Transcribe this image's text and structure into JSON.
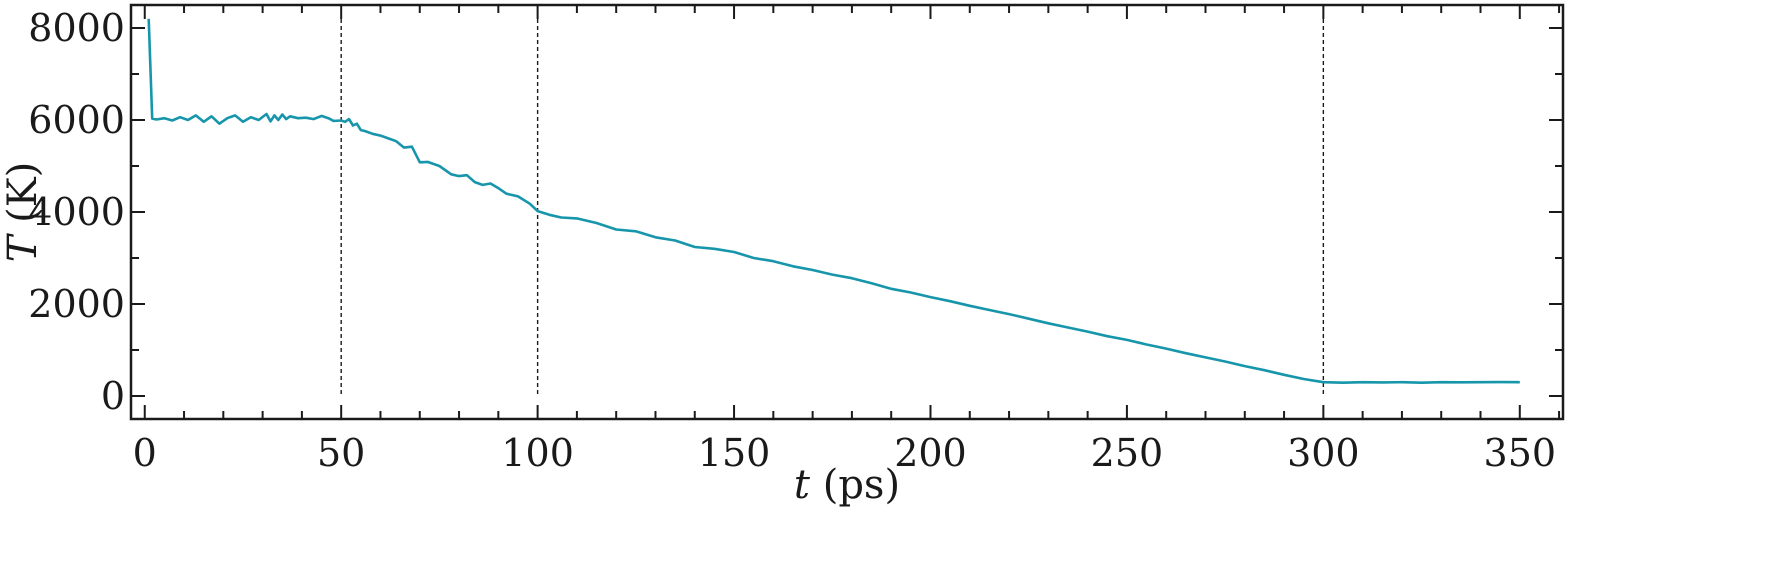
{
  "chart_data": {
    "type": "line",
    "xlabel": {
      "symbol": "t",
      "unit": "(ps)"
    },
    "ylabel": {
      "symbol": "T",
      "unit": "(K)"
    },
    "xlim": [
      -3.5,
      361
    ],
    "ylim": [
      -500,
      8500
    ],
    "xticks": [
      0,
      50,
      100,
      150,
      200,
      250,
      300,
      350
    ],
    "yticks": [
      0,
      2000,
      4000,
      6000,
      8000
    ],
    "x_minor_step": 10,
    "y_minor_step": 1000,
    "vlines": [
      50,
      100,
      300
    ],
    "grid": false,
    "line_color": "#1796ab",
    "series": [
      {
        "x": [
          1,
          1.9,
          3,
          5,
          7,
          9,
          11,
          13,
          15,
          17,
          19,
          21,
          23,
          25,
          27,
          29,
          31,
          32,
          33,
          34,
          35,
          36,
          37,
          39,
          41,
          43,
          45,
          47,
          48,
          50,
          51,
          52,
          53,
          54,
          55,
          56,
          58,
          60,
          62,
          64,
          66,
          68,
          70,
          72,
          75,
          78,
          80,
          82,
          84,
          86,
          88,
          90,
          92,
          95,
          98,
          100,
          103,
          106,
          110,
          115,
          120,
          125,
          130,
          135,
          140,
          145,
          150,
          155,
          160,
          165,
          170,
          175,
          180,
          185,
          190,
          195,
          200,
          205,
          210,
          215,
          220,
          225,
          230,
          235,
          240,
          245,
          250,
          255,
          260,
          265,
          270,
          275,
          280,
          285,
          290,
          295,
          300,
          305,
          310,
          315,
          320,
          325,
          330,
          335,
          340,
          345,
          350
        ],
        "y": [
          8200,
          6030,
          6010,
          6040,
          5990,
          6060,
          6000,
          6100,
          5960,
          6080,
          5920,
          6040,
          6100,
          5960,
          6060,
          6000,
          6130,
          5970,
          6100,
          6000,
          6120,
          6020,
          6080,
          6040,
          6050,
          6020,
          6090,
          6030,
          5980,
          5990,
          5960,
          6020,
          5880,
          5920,
          5780,
          5760,
          5700,
          5660,
          5600,
          5540,
          5400,
          5420,
          5080,
          5090,
          5000,
          4820,
          4780,
          4800,
          4650,
          4590,
          4620,
          4520,
          4400,
          4340,
          4180,
          4020,
          3940,
          3880,
          3860,
          3760,
          3620,
          3580,
          3450,
          3380,
          3240,
          3200,
          3130,
          3000,
          2930,
          2820,
          2740,
          2640,
          2560,
          2450,
          2330,
          2250,
          2150,
          2060,
          1960,
          1870,
          1780,
          1680,
          1580,
          1490,
          1400,
          1300,
          1220,
          1120,
          1030,
          930,
          840,
          750,
          650,
          560,
          460,
          370,
          300,
          290,
          300,
          295,
          300,
          290,
          300,
          298,
          300,
          302,
          300
        ]
      }
    ]
  }
}
